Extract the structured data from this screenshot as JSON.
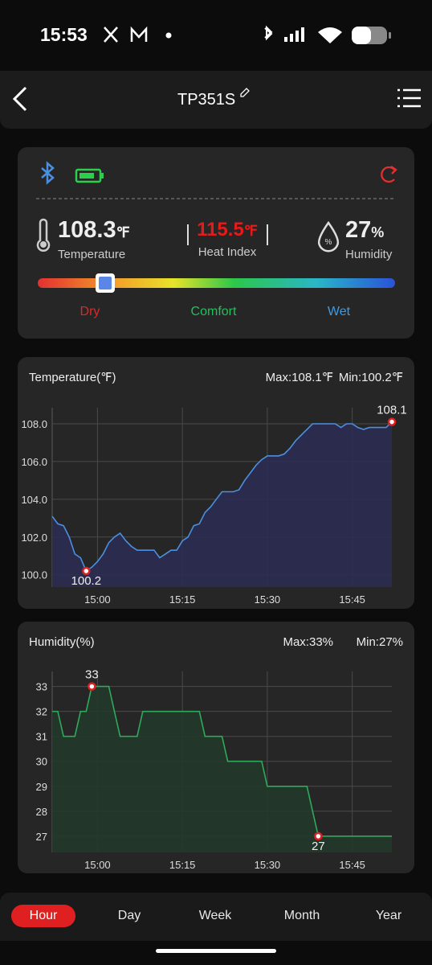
{
  "status_bar": {
    "time": "15:53"
  },
  "header": {
    "title": "TP351S"
  },
  "summary": {
    "temperature": {
      "value": "108.3",
      "unit": "℉",
      "label": "Temperature"
    },
    "heat_index": {
      "value": "115.5",
      "unit": "℉",
      "label": "Heat Index"
    },
    "humidity": {
      "value": "27",
      "unit": "%",
      "label": "Humidity"
    },
    "scale_labels": [
      "Dry",
      "Comfort",
      "Wet"
    ]
  },
  "chart_data": [
    {
      "type": "line",
      "title": "Temperature(℉)",
      "max_label": "Max:108.1℉",
      "min_label": "Min:100.2℉",
      "color": "#4a8fe0",
      "fill_color": "#2c2c52",
      "grid": true,
      "x": [
        "14:52",
        "14:53",
        "14:54",
        "14:55",
        "14:56",
        "14:57",
        "14:58",
        "14:59",
        "15:00",
        "15:01",
        "15:02",
        "15:03",
        "15:04",
        "15:05",
        "15:06",
        "15:07",
        "15:08",
        "15:09",
        "15:10",
        "15:11",
        "15:12",
        "15:13",
        "15:14",
        "15:15",
        "15:16",
        "15:17",
        "15:18",
        "15:19",
        "15:20",
        "15:21",
        "15:22",
        "15:23",
        "15:24",
        "15:25",
        "15:26",
        "15:27",
        "15:28",
        "15:29",
        "15:30",
        "15:31",
        "15:32",
        "15:33",
        "15:34",
        "15:35",
        "15:36",
        "15:37",
        "15:38",
        "15:39",
        "15:40",
        "15:41",
        "15:42",
        "15:43",
        "15:44",
        "15:45",
        "15:46",
        "15:47",
        "15:48",
        "15:49",
        "15:50",
        "15:51",
        "15:52"
      ],
      "values": [
        103.1,
        102.7,
        102.6,
        102.0,
        101.1,
        100.9,
        100.2,
        100.4,
        100.7,
        101.1,
        101.7,
        102.0,
        102.2,
        101.8,
        101.5,
        101.3,
        101.3,
        101.3,
        101.3,
        100.9,
        101.1,
        101.3,
        101.3,
        101.8,
        102.0,
        102.6,
        102.7,
        103.3,
        103.6,
        104.0,
        104.4,
        104.4,
        104.4,
        104.5,
        105.0,
        105.4,
        105.8,
        106.1,
        106.3,
        106.3,
        106.3,
        106.4,
        106.7,
        107.1,
        107.4,
        107.7,
        108.0,
        108.0,
        108.0,
        108.0,
        108.0,
        107.8,
        108.0,
        108.0,
        107.8,
        107.7,
        107.8,
        107.8,
        107.8,
        107.8,
        108.1
      ],
      "xlim": [
        "14:52",
        "15:52"
      ],
      "xticks": [
        "15:00",
        "15:15",
        "15:30",
        "15:45"
      ],
      "ylim": [
        99.35,
        108.85
      ],
      "yticks": [
        {
          "value": 100,
          "label": "100.0"
        },
        {
          "value": 102,
          "label": "102.0"
        },
        {
          "value": 104,
          "label": "104.0"
        },
        {
          "value": 106,
          "label": "106.0"
        },
        {
          "value": 108,
          "label": "108.0"
        }
      ],
      "annotations": [
        {
          "x": "14:58",
          "value": 100.2
        },
        {
          "x": "15:52",
          "value": 108.1
        }
      ]
    },
    {
      "type": "line",
      "title": "Humidity(%)",
      "max_label": "Max:33%",
      "min_label": "Min:27%",
      "color": "#2eaa5a",
      "fill_color": "#23382b",
      "grid": true,
      "x": [
        "14:52",
        "14:53",
        "14:54",
        "14:55",
        "14:56",
        "14:57",
        "14:58",
        "14:59",
        "15:00",
        "15:01",
        "15:02",
        "15:03",
        "15:04",
        "15:05",
        "15:06",
        "15:07",
        "15:08",
        "15:09",
        "15:10",
        "15:11",
        "15:12",
        "15:13",
        "15:14",
        "15:15",
        "15:16",
        "15:17",
        "15:18",
        "15:19",
        "15:20",
        "15:21",
        "15:22",
        "15:23",
        "15:24",
        "15:25",
        "15:26",
        "15:27",
        "15:28",
        "15:29",
        "15:30",
        "15:31",
        "15:32",
        "15:33",
        "15:34",
        "15:35",
        "15:36",
        "15:37",
        "15:38",
        "15:39",
        "15:40",
        "15:41",
        "15:42",
        "15:43",
        "15:44",
        "15:45",
        "15:46",
        "15:47",
        "15:48",
        "15:49",
        "15:50",
        "15:51",
        "15:52"
      ],
      "values": [
        32,
        32,
        31,
        31,
        31,
        32,
        32,
        33,
        33,
        33,
        33,
        32,
        31,
        31,
        31,
        31,
        32,
        32,
        32,
        32,
        32,
        32,
        32,
        32,
        32,
        32,
        32,
        31,
        31,
        31,
        31,
        30,
        30,
        30,
        30,
        30,
        30,
        30,
        29,
        29,
        29,
        29,
        29,
        29,
        29,
        29,
        28,
        27,
        27,
        27,
        27,
        27,
        27,
        27,
        27,
        27,
        27,
        27,
        27,
        27,
        27
      ],
      "xlim": [
        "14:52",
        "15:52"
      ],
      "xticks": [
        "15:00",
        "15:15",
        "15:30",
        "15:45"
      ],
      "ylim": [
        26.35,
        33.6
      ],
      "yticks": [
        27,
        28,
        29,
        30,
        31,
        32,
        33
      ],
      "annotations": [
        {
          "x": "14:59",
          "value": 33
        },
        {
          "x": "15:39",
          "value": 27
        }
      ]
    }
  ],
  "tabs": {
    "items": [
      "Hour",
      "Day",
      "Week",
      "Month",
      "Year"
    ],
    "selected": "Hour"
  }
}
